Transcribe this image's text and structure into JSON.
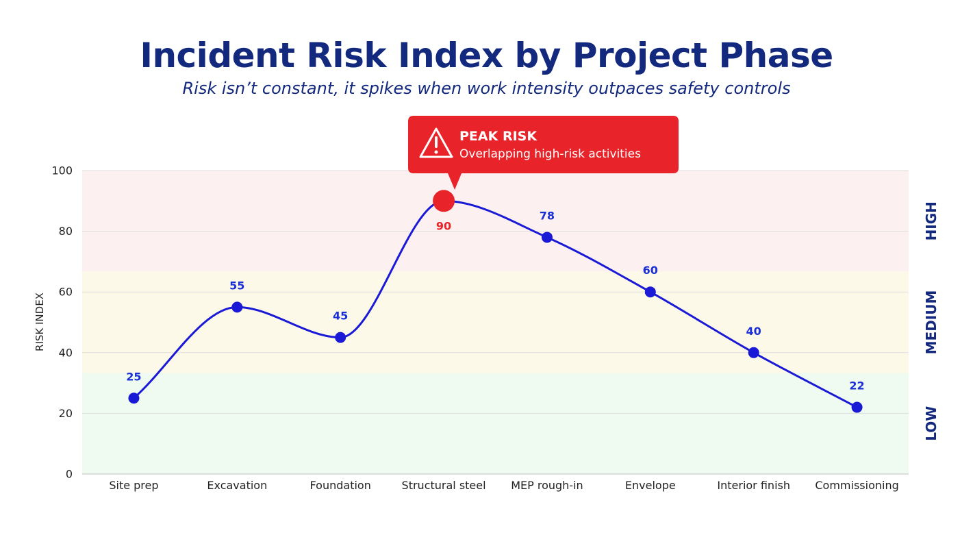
{
  "title": "Incident Risk Index by Project Phase",
  "subtitle": "Risk isn’t constant, it spikes when work intensity outpaces safety controls",
  "colors": {
    "title": "#13297e",
    "line": "#1a1ad6",
    "peak": "#e8242a",
    "band_high": "#fdf0f0",
    "band_medium": "#fdf9e9",
    "band_low": "#effbf1"
  },
  "chart_data": {
    "type": "line",
    "categories": [
      "Site prep",
      "Excavation",
      "Foundation",
      "Structural steel",
      "MEP rough-in",
      "Envelope",
      "Interior finish",
      "Commissioning"
    ],
    "values": [
      25,
      55,
      45,
      90,
      78,
      60,
      40,
      22
    ],
    "ylabel": "RISK INDEX",
    "ylim": [
      0,
      100
    ],
    "yticks": [
      0,
      20,
      40,
      60,
      80,
      100
    ],
    "grid": true,
    "smooth": true,
    "bands": [
      {
        "label": "LOW",
        "from": 0,
        "to": 33.3
      },
      {
        "label": "MEDIUM",
        "from": 33.3,
        "to": 66.7
      },
      {
        "label": "HIGH",
        "from": 66.7,
        "to": 100
      }
    ],
    "peak_index": 3,
    "annotation": {
      "title": "PEAK RISK",
      "text": "Overlapping high-risk activities",
      "icon": "warning-triangle-icon"
    }
  }
}
